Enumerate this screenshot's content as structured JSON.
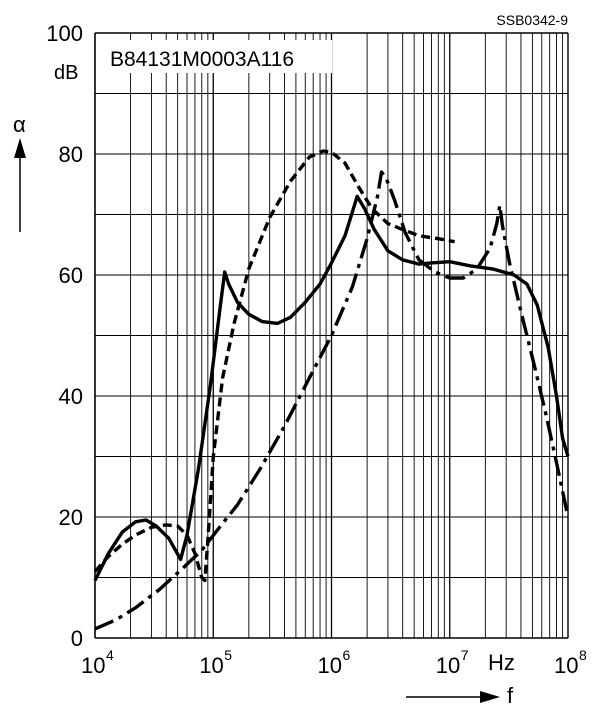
{
  "corner_label": "SSB0342-9",
  "chart_data": {
    "type": "line",
    "title": "B84131M0003A116",
    "ylabel": "α",
    "yunit": "dB",
    "xlabel": "f",
    "xunit": "Hz",
    "xscale": "log",
    "xlim": [
      10000,
      100000000
    ],
    "ylim": [
      0,
      100
    ],
    "grid": true,
    "y_ticks": [
      0,
      20,
      40,
      60,
      80,
      100
    ],
    "x_ticks": [
      {
        "base": "10",
        "exp": "4"
      },
      {
        "base": "10",
        "exp": "5"
      },
      {
        "base": "10",
        "exp": "6"
      },
      {
        "base": "10",
        "exp": "7"
      },
      {
        "base": "10",
        "exp": "8"
      }
    ],
    "series": [
      {
        "style": "solid",
        "points": [
          [
            10000,
            9.5
          ],
          [
            13000,
            14
          ],
          [
            17000,
            17.5
          ],
          [
            22000,
            19.2
          ],
          [
            27000,
            19.5
          ],
          [
            33000,
            18.5
          ],
          [
            42000,
            16.5
          ],
          [
            53000,
            13
          ],
          [
            60000,
            17
          ],
          [
            75000,
            28
          ],
          [
            95000,
            42
          ],
          [
            115000,
            55
          ],
          [
            125000,
            60.5
          ],
          [
            135000,
            58.5
          ],
          [
            160000,
            55.5
          ],
          [
            200000,
            53.5
          ],
          [
            260000,
            52.3
          ],
          [
            350000,
            52
          ],
          [
            450000,
            53
          ],
          [
            600000,
            55.5
          ],
          [
            800000,
            58.5
          ],
          [
            1000000,
            62
          ],
          [
            1300000,
            66.5
          ],
          [
            1650000,
            73
          ],
          [
            1900000,
            71
          ],
          [
            2300000,
            67.5
          ],
          [
            3000000,
            64
          ],
          [
            4000000,
            62.5
          ],
          [
            5500000,
            61.8
          ],
          [
            7000000,
            62
          ],
          [
            10000000,
            62.2
          ],
          [
            15000000,
            61.5
          ],
          [
            23000000,
            61
          ],
          [
            35000000,
            60
          ],
          [
            45000000,
            58.5
          ],
          [
            55000000,
            55
          ],
          [
            68000000,
            48
          ],
          [
            80000000,
            40
          ],
          [
            90000000,
            33
          ],
          [
            100000000,
            30
          ]
        ]
      },
      {
        "style": "dashed",
        "points": [
          [
            10000,
            11
          ],
          [
            13000,
            13.5
          ],
          [
            17000,
            15.5
          ],
          [
            22000,
            17
          ],
          [
            30000,
            18.3
          ],
          [
            40000,
            18.7
          ],
          [
            50000,
            18.5
          ],
          [
            60000,
            17
          ],
          [
            70000,
            14
          ],
          [
            80000,
            10
          ],
          [
            85000,
            9.5
          ],
          [
            90000,
            16
          ],
          [
            100000,
            30
          ],
          [
            120000,
            43
          ],
          [
            150000,
            52
          ],
          [
            200000,
            61
          ],
          [
            300000,
            69.5
          ],
          [
            450000,
            75.5
          ],
          [
            650000,
            79.5
          ],
          [
            850000,
            80.5
          ],
          [
            1000000,
            80.3
          ],
          [
            1300000,
            78.5
          ],
          [
            1700000,
            74.5
          ],
          [
            2200000,
            71
          ],
          [
            3000000,
            68.5
          ],
          [
            4000000,
            67.5
          ],
          [
            5500000,
            66.5
          ],
          [
            8000000,
            66
          ],
          [
            11000000,
            65.5
          ]
        ]
      },
      {
        "style": "dash-dot",
        "points": [
          [
            10000,
            1.5
          ],
          [
            15000,
            3
          ],
          [
            22000,
            5
          ],
          [
            35000,
            8
          ],
          [
            55000,
            11.5
          ],
          [
            80000,
            14.5
          ],
          [
            110000,
            18
          ],
          [
            160000,
            22
          ],
          [
            250000,
            28
          ],
          [
            400000,
            35
          ],
          [
            650000,
            43
          ],
          [
            1000000,
            50
          ],
          [
            1500000,
            58
          ],
          [
            2000000,
            66
          ],
          [
            2450000,
            73
          ],
          [
            2650000,
            77
          ],
          [
            2900000,
            76
          ],
          [
            3400000,
            72.5
          ],
          [
            4200000,
            67
          ],
          [
            5500000,
            62.5
          ],
          [
            7500000,
            60.5
          ],
          [
            10000000,
            59.5
          ],
          [
            13000000,
            59.5
          ],
          [
            17000000,
            61
          ],
          [
            22000000,
            64.5
          ],
          [
            25000000,
            68.5
          ],
          [
            26500000,
            71.5
          ],
          [
            28000000,
            68
          ],
          [
            32000000,
            62
          ],
          [
            40000000,
            54
          ],
          [
            52000000,
            45
          ],
          [
            65000000,
            37
          ],
          [
            80000000,
            29
          ],
          [
            100000000,
            20
          ]
        ]
      }
    ]
  }
}
